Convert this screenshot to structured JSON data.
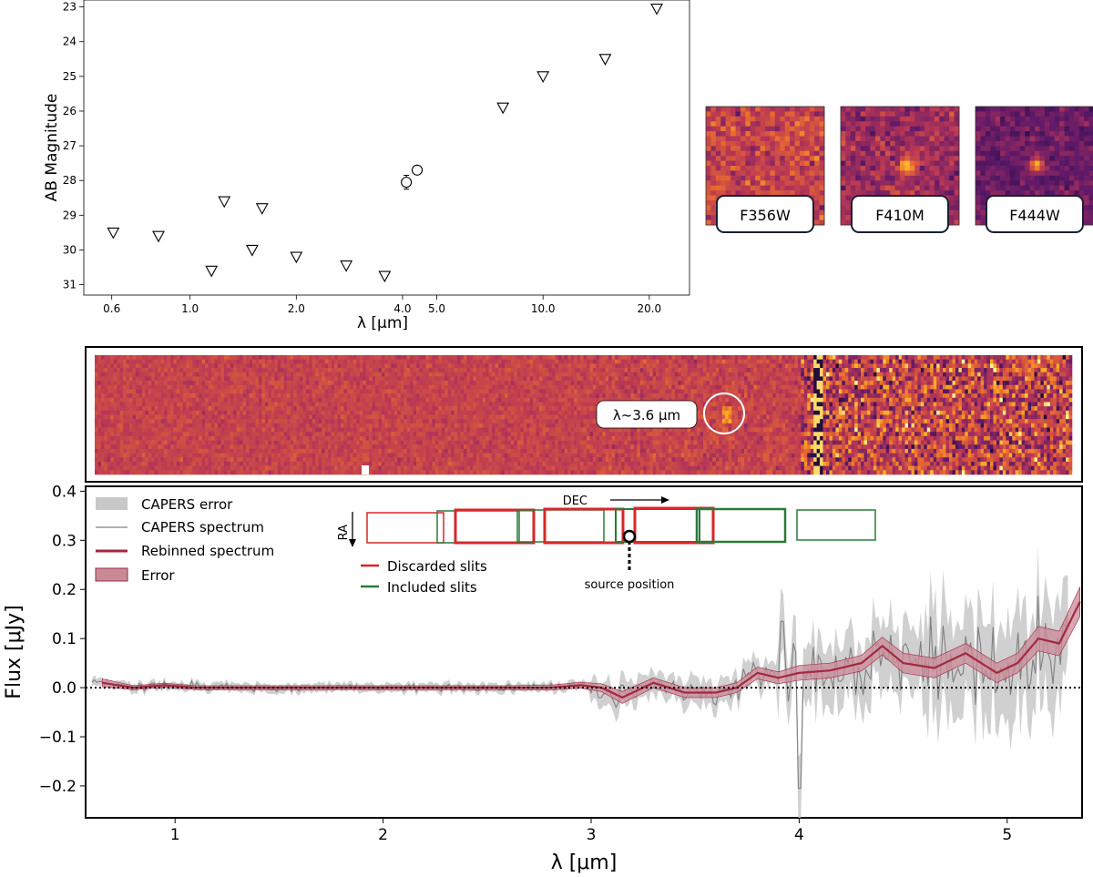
{
  "chart_data": [
    {
      "type": "scatter",
      "title": "",
      "xlabel": "λ [μm]",
      "ylabel": "AB Magnitude",
      "xscale": "log",
      "xlim": [
        0.5,
        26
      ],
      "ylim": [
        31.3,
        22.8
      ],
      "x_ticks": [
        "0.6",
        "1.0",
        "2.0",
        "4.0",
        "5.0",
        "10.0",
        "20.0"
      ],
      "x_tick_values": [
        0.6,
        1.0,
        2.0,
        4.0,
        5.0,
        10.0,
        20.0
      ],
      "y_ticks": [
        "23",
        "24",
        "25",
        "26",
        "27",
        "28",
        "29",
        "30",
        "31"
      ],
      "y_tick_values": [
        23,
        24,
        25,
        26,
        27,
        28,
        29,
        30,
        31
      ],
      "upper_limits": [
        {
          "x": 0.606,
          "y": 29.5
        },
        {
          "x": 0.814,
          "y": 29.6
        },
        {
          "x": 1.15,
          "y": 30.6
        },
        {
          "x": 1.25,
          "y": 28.6
        },
        {
          "x": 1.5,
          "y": 30.0
        },
        {
          "x": 1.6,
          "y": 28.8
        },
        {
          "x": 2.0,
          "y": 30.2
        },
        {
          "x": 2.77,
          "y": 30.45
        },
        {
          "x": 3.56,
          "y": 30.75
        },
        {
          "x": 7.7,
          "y": 25.9
        },
        {
          "x": 10.0,
          "y": 25.0
        },
        {
          "x": 15.0,
          "y": 24.5
        },
        {
          "x": 21.0,
          "y": 23.05
        }
      ],
      "detections": [
        {
          "x": 4.1,
          "y": 28.05,
          "err": 0.2
        },
        {
          "x": 4.4,
          "y": 27.7,
          "err": 0.0
        }
      ]
    },
    {
      "type": "line",
      "title": "",
      "xlabel": "λ [μm]",
      "ylabel": "Flux [μJy]",
      "xlim": [
        0.57,
        5.36
      ],
      "ylim": [
        -0.265,
        0.41
      ],
      "x_ticks": [
        "1",
        "2",
        "3",
        "4",
        "5"
      ],
      "x_tick_values": [
        1,
        2,
        3,
        4,
        5
      ],
      "y_ticks": [
        "0.4",
        "0.3",
        "0.2",
        "0.1",
        "0.0",
        "−0.1",
        "−0.2"
      ],
      "y_tick_values": [
        0.4,
        0.3,
        0.2,
        0.1,
        0.0,
        -0.1,
        -0.2
      ],
      "legend_position": "upper-left",
      "series": [
        {
          "name": "Rebinned spectrum",
          "color": "#a3293f",
          "x": [
            0.65,
            0.8,
            0.95,
            1.1,
            1.25,
            1.4,
            1.6,
            1.8,
            2.0,
            2.2,
            2.4,
            2.6,
            2.8,
            2.95,
            3.05,
            3.15,
            3.3,
            3.45,
            3.6,
            3.7,
            3.8,
            3.9,
            4.0,
            4.15,
            4.3,
            4.4,
            4.5,
            4.65,
            4.8,
            4.95,
            5.05,
            5.15,
            5.25,
            5.35
          ],
          "y": [
            0.01,
            0.0,
            0.005,
            0.0,
            0.0,
            0.0,
            0.0,
            0.0,
            0.0,
            0.0,
            0.0,
            0.0,
            0.0,
            0.005,
            0.0,
            -0.02,
            0.01,
            -0.01,
            -0.01,
            0.0,
            0.03,
            0.02,
            0.03,
            0.035,
            0.05,
            0.085,
            0.05,
            0.04,
            0.07,
            0.03,
            0.05,
            0.1,
            0.09,
            0.175
          ],
          "err": [
            0.008,
            0.004,
            0.004,
            0.004,
            0.004,
            0.004,
            0.004,
            0.004,
            0.004,
            0.004,
            0.004,
            0.004,
            0.005,
            0.006,
            0.008,
            0.012,
            0.01,
            0.01,
            0.01,
            0.01,
            0.012,
            0.012,
            0.015,
            0.015,
            0.016,
            0.018,
            0.02,
            0.02,
            0.02,
            0.02,
            0.02,
            0.025,
            0.025,
            0.03
          ]
        },
        {
          "name": "CAPERS spectrum",
          "color": "#808080"
        },
        {
          "name": "CAPERS error",
          "color": "#c8c8c8"
        },
        {
          "name": "Error",
          "color": "#c98a98"
        }
      ],
      "legend": [
        "CAPERS error",
        "CAPERS spectrum",
        "Rebinned spectrum",
        "Error"
      ],
      "zero_line": true
    }
  ],
  "cutouts": [
    {
      "filter": "F356W"
    },
    {
      "filter": "F410M"
    },
    {
      "filter": "F444W"
    }
  ],
  "spectrum_2d": {
    "annotation": "λ~3.6 μm"
  },
  "slit_inset": {
    "dec_label": "DEC",
    "ra_label": "RA",
    "discarded_label": "Discarded slits",
    "included_label": "Included slits",
    "source_label": "source position",
    "discarded_color": "#d62728",
    "included_color": "#2b7a3b"
  },
  "colors": {
    "rebinned": "#a3293f",
    "capers_spectrum": "#808080",
    "capers_error": "#c8c8c8",
    "error_band": "#c98a98"
  }
}
